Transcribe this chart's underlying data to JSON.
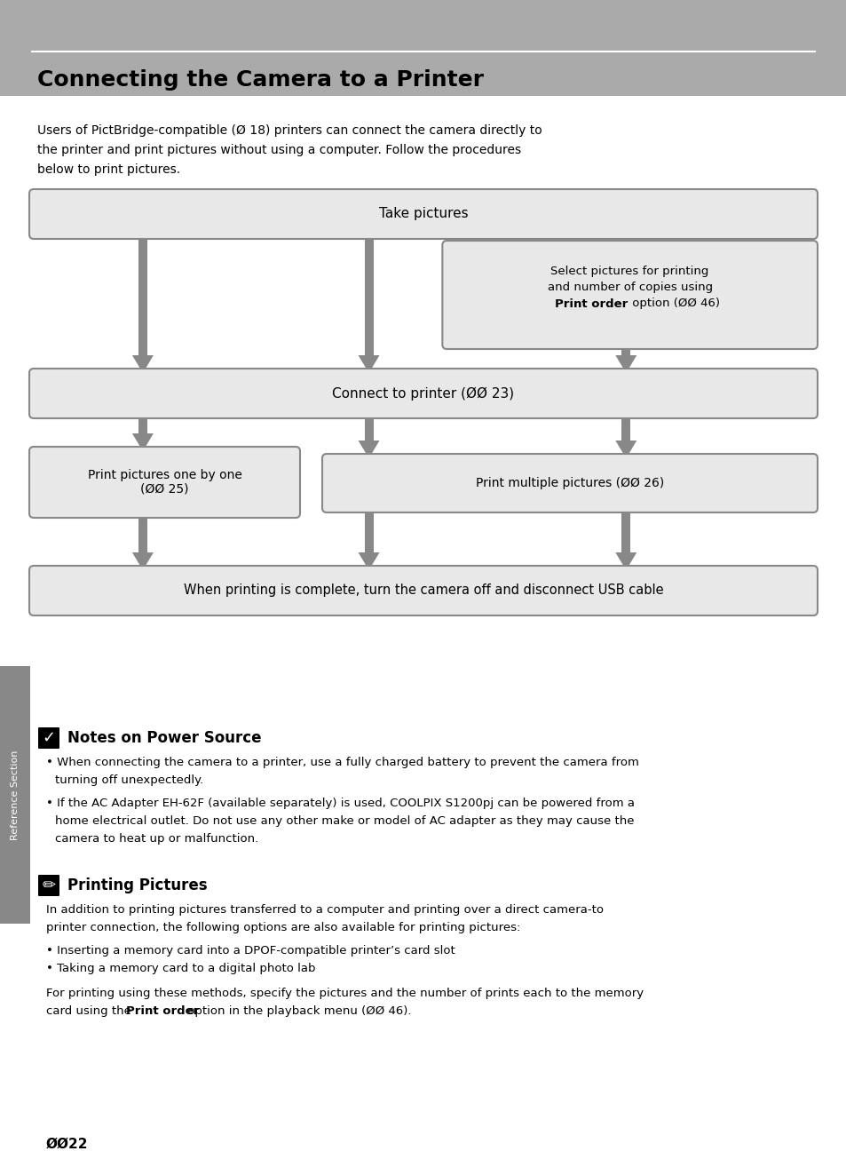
{
  "title": "Connecting the Camera to a Printer",
  "bg_color": "#ffffff",
  "header_bg": "#aaaaaa",
  "box_bg": "#e8e8e8",
  "box_border": "#888888",
  "arrow_color": "#888888",
  "sidebar_color": "#888888",
  "sidebar_text": "Reference Section",
  "intro_lines": [
    "Users of PictBridge-compatible (Ø 18) printers can connect the camera directly to",
    "the printer and print pictures without using a computer. Follow the procedures",
    "below to print pictures."
  ],
  "note1_title": "Notes on Power Source",
  "note1_bullet1_line1": "When connecting the camera to a printer, use a fully charged battery to prevent the camera from",
  "note1_bullet1_line2": "turning off unexpectedly.",
  "note1_bullet2_line1": "If the AC Adapter EH-62F (available separately) is used, COOLPIX S1200pj can be powered from a",
  "note1_bullet2_line2": "home electrical outlet. Do not use any other make or model of AC adapter as they may cause the",
  "note1_bullet2_line3": "camera to heat up or malfunction.",
  "note2_title": "Printing Pictures",
  "note2_body1": "In addition to printing pictures transferred to a computer and printing over a direct camera-to",
  "note2_body2": "printer connection, the following options are also available for printing pictures:",
  "note2_bul1": "Inserting a memory card into a DPOF-compatible printer’s card slot",
  "note2_bul2": "Taking a memory card to a digital photo lab",
  "note2_footer1": "For printing using these methods, specify the pictures and the number of prints each to the memory",
  "note2_footer2_pre": "card using the ",
  "note2_footer2_bold": "Print order",
  "note2_footer2_post": " option in the playback menu (ØØ 46).",
  "page_num": "ØØ22"
}
